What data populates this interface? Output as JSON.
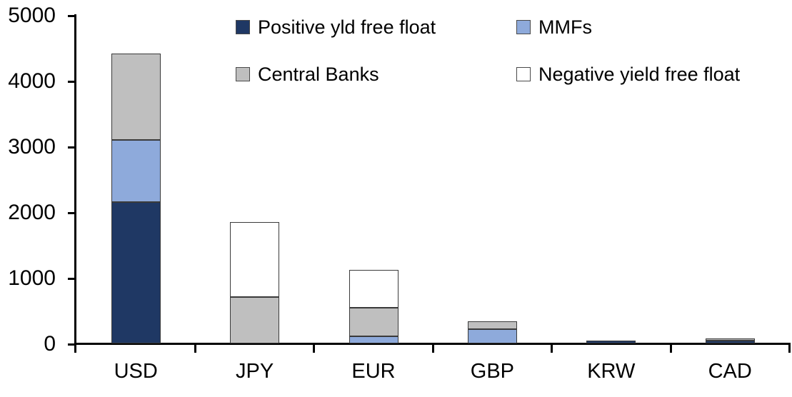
{
  "chart_data": {
    "type": "bar",
    "stacked": true,
    "title": "",
    "xlabel": "",
    "ylabel": "",
    "categories": [
      "USD",
      "JPY",
      "EUR",
      "GBP",
      "KRW",
      "CAD"
    ],
    "series": [
      {
        "name": "Positive yld free float",
        "color": "#1f3864",
        "values": [
          2150,
          0,
          0,
          0,
          45,
          40
        ]
      },
      {
        "name": "MMFs",
        "color": "#8eaadb",
        "values": [
          950,
          0,
          110,
          220,
          0,
          0
        ]
      },
      {
        "name": "Central Banks",
        "color": "#bfbfbf",
        "values": [
          1320,
          710,
          435,
          115,
          0,
          30
        ]
      },
      {
        "name": "Negative yield free float",
        "color": "#ffffff",
        "values": [
          0,
          1140,
          575,
          0,
          0,
          0
        ]
      }
    ],
    "totals": [
      4420,
      1850,
      1120,
      335,
      45,
      70
    ],
    "ylim": [
      0,
      5000
    ],
    "yticks": [
      0,
      1000,
      2000,
      3000,
      4000,
      5000
    ],
    "grid": false,
    "legend_position": "top",
    "legend_columns": 2,
    "axis_color": "#000000",
    "segment_border_color": "#3a3a3a",
    "background_color": "#ffffff"
  }
}
